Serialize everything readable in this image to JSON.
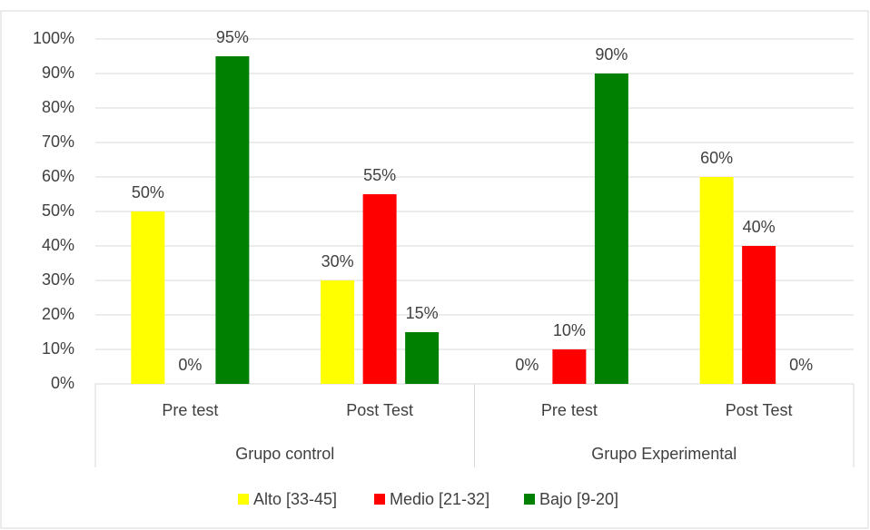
{
  "chart_data": {
    "type": "bar",
    "categories": [
      "Pre test",
      "Post Test",
      "Pre test",
      "Post Test"
    ],
    "groups": [
      "Grupo control",
      "Grupo Experimental"
    ],
    "series": [
      {
        "name": "Alto [33-45]",
        "color": "#ffff00",
        "values": [
          50,
          30,
          0,
          60
        ],
        "value_labels": [
          "50%",
          "30%",
          "0%",
          "60%"
        ]
      },
      {
        "name": "Medio [21-32]",
        "color": "#ff0000",
        "values": [
          0,
          55,
          10,
          40
        ],
        "value_labels": [
          "0%",
          "55%",
          "10%",
          "40%"
        ]
      },
      {
        "name": "Bajo [9-20]",
        "color": "#008000",
        "values": [
          95,
          15,
          90,
          0
        ],
        "value_labels": [
          "95%",
          "15%",
          "90%",
          "0%"
        ]
      }
    ],
    "ylim": [
      0,
      100
    ],
    "yticks": [
      {
        "value": 0,
        "label": "0%"
      },
      {
        "value": 10,
        "label": "10%"
      },
      {
        "value": 20,
        "label": "20%"
      },
      {
        "value": 30,
        "label": "30%"
      },
      {
        "value": 40,
        "label": "40%"
      },
      {
        "value": 50,
        "label": "50%"
      },
      {
        "value": 60,
        "label": "60%"
      },
      {
        "value": 70,
        "label": "70%"
      },
      {
        "value": 80,
        "label": "80%"
      },
      {
        "value": 90,
        "label": "90%"
      },
      {
        "value": 100,
        "label": "100%"
      }
    ],
    "grid": true,
    "legend": "bottom"
  }
}
